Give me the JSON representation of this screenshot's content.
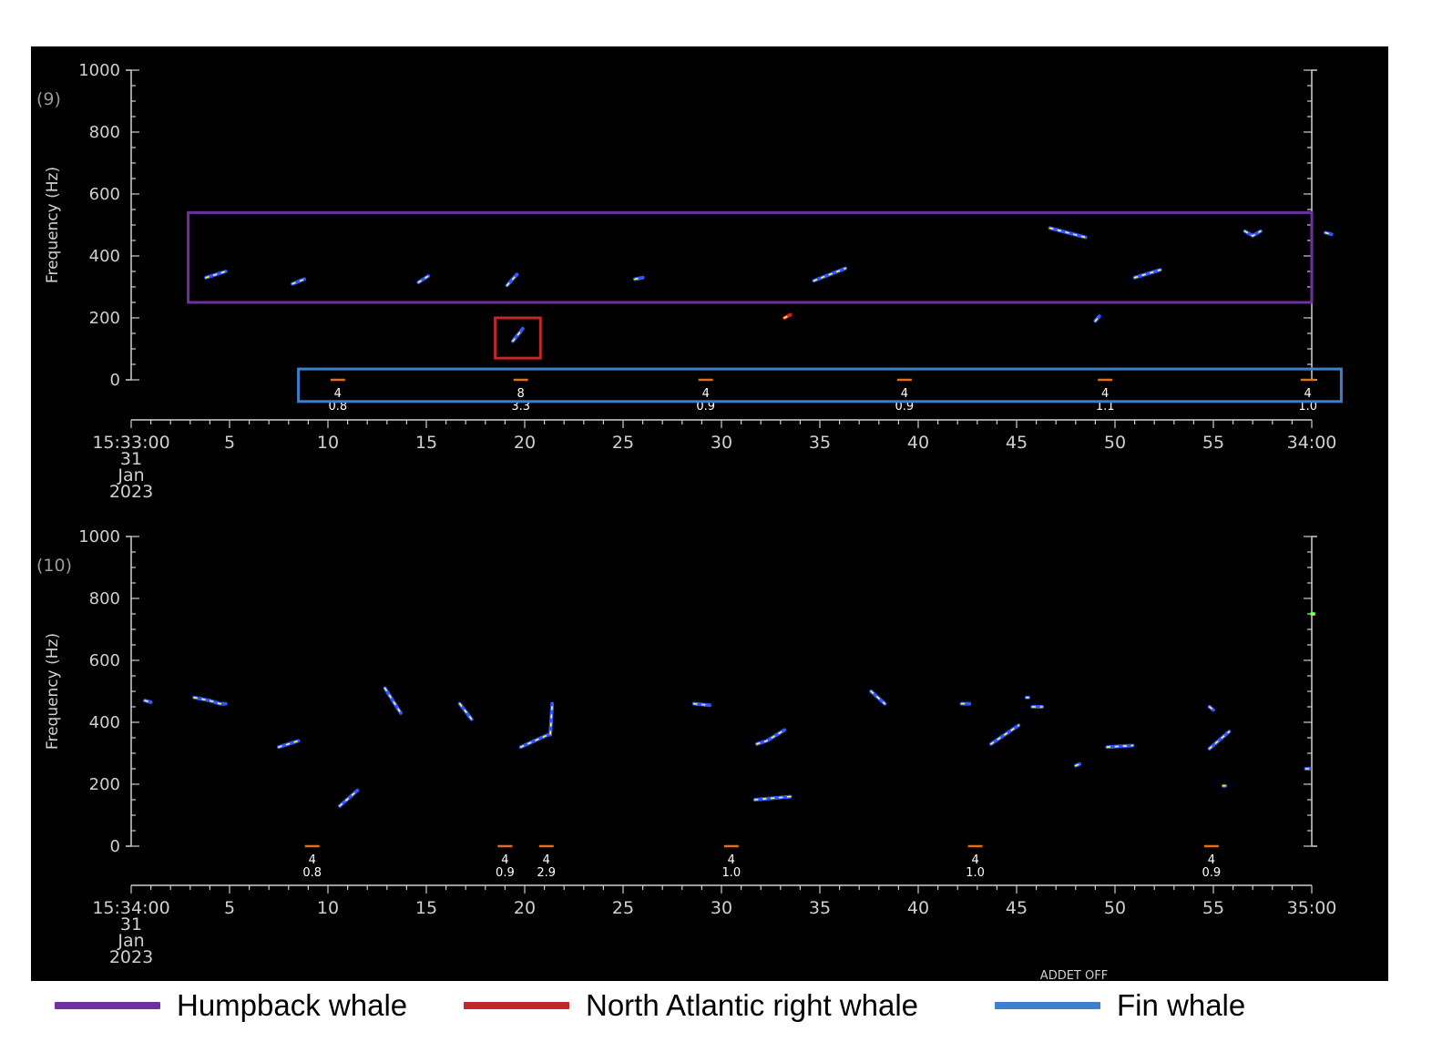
{
  "chart_data": [
    {
      "type": "scatter",
      "panel_label": "(9)",
      "ylabel": "Frequency (Hz)",
      "ylim": [
        0,
        1000
      ],
      "yticks": [
        "1000",
        "800",
        "600",
        "400",
        "200",
        "0"
      ],
      "xlim": [
        0,
        60
      ],
      "x_start_label": [
        "15:33:00",
        "31",
        "Jan",
        "2023"
      ],
      "xtick_labels": [
        "5",
        "10",
        "15",
        "20",
        "25",
        "30",
        "35",
        "40",
        "45",
        "50",
        "55",
        "34:00"
      ],
      "grid": false,
      "series": [
        {
          "color": "#3355ff",
          "calls": [
            {
              "x": [
                3.8,
                4.8
              ],
              "y": [
                330,
                350
              ]
            },
            {
              "x": [
                8.2,
                8.8
              ],
              "y": [
                310,
                325
              ]
            },
            {
              "x": [
                14.6,
                15.1
              ],
              "y": [
                315,
                335
              ]
            },
            {
              "x": [
                19.1,
                19.6
              ],
              "y": [
                305,
                340
              ]
            },
            {
              "x": [
                25.6,
                26.0
              ],
              "y": [
                325,
                330
              ]
            },
            {
              "x": [
                34.7,
                36.3
              ],
              "y": [
                320,
                360
              ]
            },
            {
              "x": [
                46.7,
                48.5
              ],
              "y": [
                490,
                460
              ]
            },
            {
              "x": [
                51.0,
                52.3
              ],
              "y": [
                330,
                355
              ]
            },
            {
              "x": [
                56.6,
                57.0,
                57.4
              ],
              "y": [
                480,
                465,
                480
              ]
            },
            {
              "x": [
                19.4,
                19.9
              ],
              "y": [
                125,
                165
              ]
            },
            {
              "x": [
                49.0,
                49.2
              ],
              "y": [
                190,
                205
              ]
            },
            {
              "x": [
                60.7,
                61.0
              ],
              "y": [
                475,
                470
              ]
            }
          ]
        },
        {
          "color": "#cc2222",
          "calls": [
            {
              "x": [
                33.2,
                33.5
              ],
              "y": [
                200,
                210
              ]
            }
          ]
        }
      ],
      "detections": [
        {
          "x": 10.5,
          "count": "4",
          "score": "0.8"
        },
        {
          "x": 19.8,
          "count": "8",
          "score": "3.3"
        },
        {
          "x": 29.2,
          "count": "4",
          "score": "0.9"
        },
        {
          "x": 39.3,
          "count": "4",
          "score": "0.9"
        },
        {
          "x": 49.5,
          "count": "4",
          "score": "1.1"
        },
        {
          "x": 59.8,
          "count": "4",
          "score": "1.0"
        }
      ],
      "annotation_boxes": [
        {
          "species": "Humpback whale",
          "x": [
            2.9,
            60.0
          ],
          "y": [
            250,
            540
          ]
        },
        {
          "species": "North Atlantic right whale",
          "x": [
            18.5,
            20.8
          ],
          "y": [
            70,
            200
          ]
        },
        {
          "species": "Fin whale",
          "x": [
            8.5,
            61.5
          ],
          "y": [
            -70,
            35
          ]
        }
      ]
    },
    {
      "type": "scatter",
      "panel_label": "(10)",
      "ylabel": "Frequency (Hz)",
      "ylim": [
        0,
        1000
      ],
      "yticks": [
        "1000",
        "800",
        "600",
        "400",
        "200",
        "0"
      ],
      "xlim": [
        0,
        60
      ],
      "x_start_label": [
        "15:34:00",
        "31",
        "Jan",
        "2023"
      ],
      "xtick_labels": [
        "5",
        "10",
        "15",
        "20",
        "25",
        "30",
        "35",
        "40",
        "45",
        "50",
        "55",
        "35:00"
      ],
      "grid": false,
      "series": [
        {
          "color": "#3355ff",
          "calls": [
            {
              "x": [
                0.7,
                1.0
              ],
              "y": [
                470,
                465
              ]
            },
            {
              "x": [
                3.2,
                4.0,
                4.5,
                4.8
              ],
              "y": [
                480,
                470,
                460,
                460
              ]
            },
            {
              "x": [
                7.5,
                8.5
              ],
              "y": [
                320,
                340
              ]
            },
            {
              "x": [
                10.6,
                11.5
              ],
              "y": [
                130,
                180
              ]
            },
            {
              "x": [
                12.9,
                13.7
              ],
              "y": [
                510,
                430
              ]
            },
            {
              "x": [
                16.7,
                17.3
              ],
              "y": [
                460,
                410
              ]
            },
            {
              "x": [
                19.8,
                21.2,
                21.3,
                21.4
              ],
              "y": [
                320,
                360,
                360,
                460
              ]
            },
            {
              "x": [
                28.6,
                29.4
              ],
              "y": [
                460,
                455
              ]
            },
            {
              "x": [
                31.8,
                32.3,
                33.2
              ],
              "y": [
                330,
                340,
                375
              ]
            },
            {
              "x": [
                31.7,
                33.5
              ],
              "y": [
                150,
                160
              ]
            },
            {
              "x": [
                37.6,
                38.3
              ],
              "y": [
                500,
                460
              ]
            },
            {
              "x": [
                42.2,
                42.6
              ],
              "y": [
                460,
                460
              ]
            },
            {
              "x": [
                43.7,
                45.1
              ],
              "y": [
                330,
                390
              ]
            },
            {
              "x": [
                45.8,
                46.3
              ],
              "y": [
                450,
                450
              ]
            },
            {
              "x": [
                45.5,
                45.6
              ],
              "y": [
                480,
                480
              ]
            },
            {
              "x": [
                48.0,
                48.2
              ],
              "y": [
                260,
                265
              ]
            },
            {
              "x": [
                49.6,
                50.9
              ],
              "y": [
                320,
                325
              ]
            },
            {
              "x": [
                54.8,
                55.0
              ],
              "y": [
                450,
                440
              ]
            },
            {
              "x": [
                54.8,
                55.8
              ],
              "y": [
                315,
                370
              ]
            },
            {
              "x": [
                55.5,
                55.6
              ],
              "y": [
                195,
                195
              ]
            },
            {
              "x": [
                59.7,
                59.9
              ],
              "y": [
                250,
                250
              ]
            }
          ]
        },
        {
          "color": "#44ff44",
          "calls": [
            {
              "x": [
                60.0,
                60.1
              ],
              "y": [
                750,
                750
              ]
            }
          ]
        }
      ],
      "detections": [
        {
          "x": 9.2,
          "count": "4",
          "score": "0.8"
        },
        {
          "x": 19.0,
          "count": "4",
          "score": "0.9"
        },
        {
          "x": 21.1,
          "count": "4",
          "score": "2.9"
        },
        {
          "x": 30.5,
          "count": "4",
          "score": "1.0"
        },
        {
          "x": 42.9,
          "count": "4",
          "score": "1.0"
        },
        {
          "x": 54.9,
          "count": "4",
          "score": "0.9"
        }
      ],
      "annotation_boxes": []
    }
  ],
  "footer_text": "ADDET OFF",
  "legend": [
    {
      "label": "Humpback whale",
      "color": "#7030a0"
    },
    {
      "label": "North Atlantic right whale",
      "color": "#c0282a"
    },
    {
      "label": "Fin whale",
      "color": "#3f7fd0"
    }
  ]
}
